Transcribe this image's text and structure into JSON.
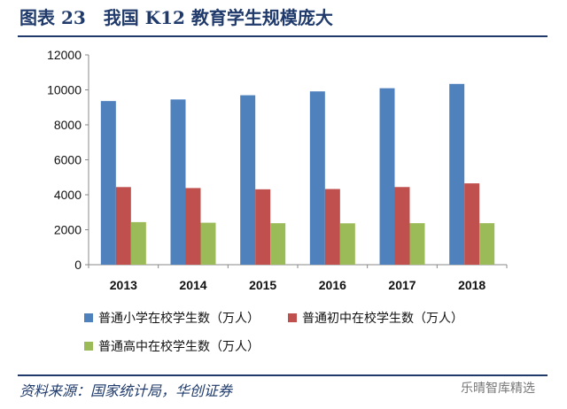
{
  "header": {
    "title": "图表 23　我国 K12 教育学生规模庞大"
  },
  "footer": {
    "source": "资料来源：国家统计局，华创证券",
    "watermark": "乐晴智库精选"
  },
  "chart_data": {
    "type": "bar",
    "title": "",
    "xlabel": "",
    "ylabel": "",
    "ylim": [
      0,
      12000
    ],
    "yticks": [
      0,
      2000,
      4000,
      6000,
      8000,
      10000,
      12000
    ],
    "categories": [
      "2013",
      "2014",
      "2015",
      "2016",
      "2017",
      "2018"
    ],
    "legend_position": "bottom",
    "grid": false,
    "series": [
      {
        "name": "普通小学在校学生数（万人）",
        "color": "#4f81bd",
        "values": [
          9360,
          9451,
          9692,
          9913,
          10094,
          10339
        ]
      },
      {
        "name": "普通初中在校学生数（万人）",
        "color": "#c0504d",
        "values": [
          4440,
          4384,
          4312,
          4329,
          4442,
          4652
        ]
      },
      {
        "name": "普通高中在校学生数（万人）",
        "color": "#9bbb59",
        "values": [
          2436,
          2401,
          2374,
          2367,
          2375,
          2375
        ]
      }
    ]
  }
}
